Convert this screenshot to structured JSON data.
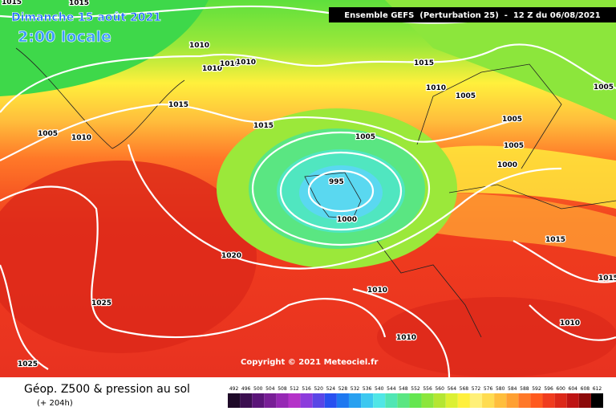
{
  "header": {
    "title": "Dimanche 15 août 2021",
    "time": "2:00 locale",
    "model": "Ensemble GEFS  (Perturbation 25)  -  12 Z du 06/08/2021"
  },
  "map": {
    "isobar_labels": [
      "1015",
      "1015",
      "1010",
      "1010",
      "1010",
      "1010",
      "1015",
      "1005",
      "1010",
      "1015",
      "1015",
      "1010",
      "1005",
      "1005",
      "1005",
      "1005",
      "1005",
      "1000",
      "995",
      "1000",
      "1020",
      "1015",
      "1015",
      "1010",
      "1010",
      "1025",
      "1010",
      "1025"
    ]
  },
  "copyright": "Copyright © 2021 Meteociel.fr",
  "footer": {
    "title": "Géop. Z500 & pression au sol",
    "lead": "(+ 204h)",
    "scale": {
      "labels": [
        492,
        496,
        500,
        504,
        508,
        512,
        516,
        520,
        524,
        528,
        532,
        536,
        540,
        544,
        548,
        552,
        556,
        560,
        564,
        568,
        572,
        576,
        580,
        584,
        588,
        592,
        596,
        600,
        604,
        608,
        612
      ],
      "colors": [
        "#1e0a28",
        "#3c0f50",
        "#5a1478",
        "#781e96",
        "#9628b4",
        "#b432c8",
        "#8c3cdc",
        "#5a46e6",
        "#2850f0",
        "#1e78f0",
        "#28a0f0",
        "#3cc8f0",
        "#50e6e6",
        "#50e6b4",
        "#5ae682",
        "#64e650",
        "#8ce63c",
        "#b4e632",
        "#dcf032",
        "#fff03c",
        "#fff078",
        "#ffdc50",
        "#ffbe3c",
        "#ffa032",
        "#ff7828",
        "#ff5a1e",
        "#f03c1e",
        "#dc2819",
        "#be1414",
        "#8c0a0a",
        "#000000"
      ]
    }
  }
}
